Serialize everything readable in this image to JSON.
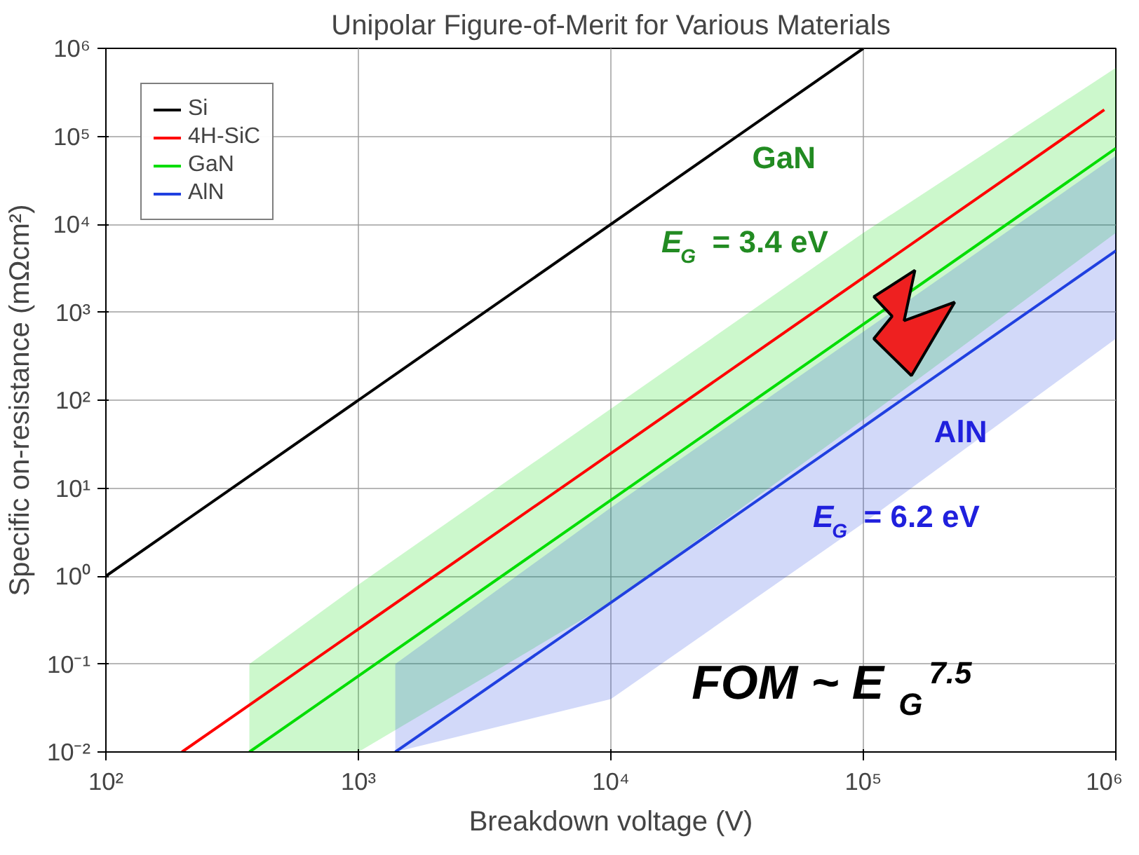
{
  "chart_data": {
    "type": "line",
    "title": "Unipolar Figure-of-Merit for Various Materials",
    "xlabel": "Breakdown voltage (V)",
    "ylabel": "Specific on-resistance (mΩcm²)",
    "log": "xy",
    "grid": true,
    "legend": "top left",
    "line_style": "solid",
    "marker": "none",
    "xlim": [
      100,
      1000000
    ],
    "ylim": [
      0.01,
      1000000
    ],
    "xticks": [
      {
        "value": 100,
        "label": "10²"
      },
      {
        "value": 1000,
        "label": "10³"
      },
      {
        "value": 10000,
        "label": "10⁴"
      },
      {
        "value": 100000,
        "label": "10⁵"
      },
      {
        "value": 1000000,
        "label": "10⁶"
      }
    ],
    "yticks": [
      {
        "value": 0.01,
        "label": "10⁻²"
      },
      {
        "value": 0.1,
        "label": "10⁻¹"
      },
      {
        "value": 1,
        "label": "10⁰"
      },
      {
        "value": 10,
        "label": "10¹"
      },
      {
        "value": 100,
        "label": "10²"
      },
      {
        "value": 1000,
        "label": "10³"
      },
      {
        "value": 10000,
        "label": "10⁴"
      },
      {
        "value": 100000,
        "label": "10⁵"
      },
      {
        "value": 1000000,
        "label": "10⁶"
      }
    ],
    "series": [
      {
        "name": "Si",
        "color": "#000000",
        "x": [
          100,
          100000
        ],
        "values": [
          1,
          1000000
        ]
      },
      {
        "name": "4H-SiC",
        "color": "#ff0000",
        "x": [
          200,
          900000
        ],
        "values": [
          0.01,
          200000
        ]
      },
      {
        "name": "GaN",
        "color": "#00dd00",
        "x": [
          370,
          1000,
          10000,
          100000,
          1000000
        ],
        "values": [
          0.01,
          0.073,
          7.3,
          730,
          73000
        ],
        "lower": [
          0.01,
          0.01,
          0.5,
          60,
          8000
        ],
        "upper": [
          0.1,
          0.8,
          80,
          8000,
          600000
        ]
      },
      {
        "name": "AlN",
        "color": "#2040e0",
        "x": [
          1400,
          10000,
          100000,
          1000000
        ],
        "values": [
          0.01,
          0.5,
          50,
          5000
        ],
        "lower": [
          0.01,
          0.04,
          4,
          500
        ],
        "upper": [
          0.1,
          6,
          600,
          60000
        ]
      }
    ],
    "annotations": [
      "GaN",
      "E$_{G}$ = 3.4 eV",
      "AlN",
      "E$_{G}$ = 6.2 eV",
      "FOM ~ E$_{G}$$^{7.5}$"
    ]
  }
}
